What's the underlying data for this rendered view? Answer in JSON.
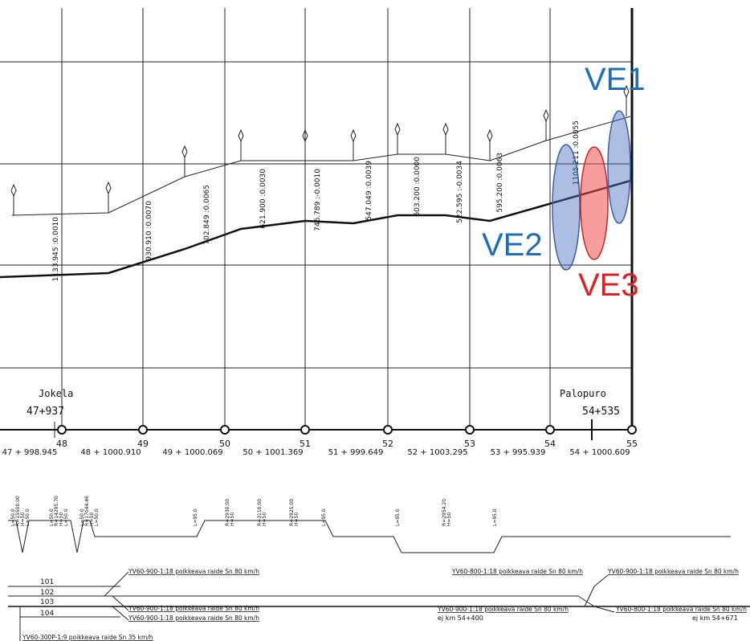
{
  "markers": [
    {
      "label": "VE1"
    },
    {
      "label": "VE2"
    },
    {
      "label": "VE3"
    }
  ],
  "stations": [
    {
      "name": "Jokela",
      "km": "47+937"
    },
    {
      "name": "Palopuro",
      "km": "54+535"
    }
  ],
  "km_posts": [
    {
      "number": "48",
      "chainage": "47 + 998.945"
    },
    {
      "number": "49",
      "chainage": "48 + 1000.910"
    },
    {
      "number": "50",
      "chainage": "49 + 1000.069"
    },
    {
      "number": "51",
      "chainage": "50 + 1001.369"
    },
    {
      "number": "52",
      "chainage": "51 + 999.649"
    },
    {
      "number": "53",
      "chainage": "52 + 1003.295"
    },
    {
      "number": "54",
      "chainage": "53 + 995.939"
    },
    {
      "number": "55",
      "chainage": "54 + 1000.609"
    }
  ],
  "grades": [
    "1133.945 :0.0010",
    "930.910 :0.0070",
    "702.849 :0.0065",
    "621.900 :0.0030",
    "746.789 :-0.0010",
    "547.049 :0.0039",
    "603.200 :0.0000",
    "522.595 :-0.0034",
    "595.200 :0.0063",
    "1105.211 :0.0055"
  ],
  "curves": [
    "L=50.0",
    "R=15500.00",
    "H=50",
    "L=50.0",
    "L=50.0",
    "R=14295.70",
    "H=50",
    "L=50.0",
    "L=50.0",
    "R=17044.46",
    "H=50",
    "L=50.0",
    "L=95.0",
    "R=2930.00",
    "H=50",
    "R=3110.00",
    "H=50",
    "R=2925.00",
    "H=50",
    "L=95.0",
    "L=95.0",
    "R=2954.20",
    "H=50",
    "L=95.0"
  ],
  "tracks": [
    "101",
    "102",
    "103",
    "104"
  ],
  "switches": [
    {
      "label": "YV60-900-1:18 poikkeava raide Sn 80 km/h"
    },
    {
      "label": "YV60-900-1:18 poikkeava raide Sn 80 km/h"
    },
    {
      "label": "YV60-900-1:18 poikkeava raide Sn 80 km/h"
    },
    {
      "label": "YV60-800-1:18 poikkeava raide Sn 80 km/h"
    },
    {
      "label": "YV60-900-1:18 poikkeava raide Sn 80 km/h"
    },
    {
      "label": "YV60-900-1:18 poikkeava raide Sn 80 km/h",
      "note": "ej km 54+400"
    },
    {
      "label": "YV60-800-1:18 poikkeava raide Sn 80 km/h",
      "note": "ej km 54+671"
    },
    {
      "label": "YV60-300P-1:9 poikkeava raide Sn 35 km/h"
    }
  ]
}
